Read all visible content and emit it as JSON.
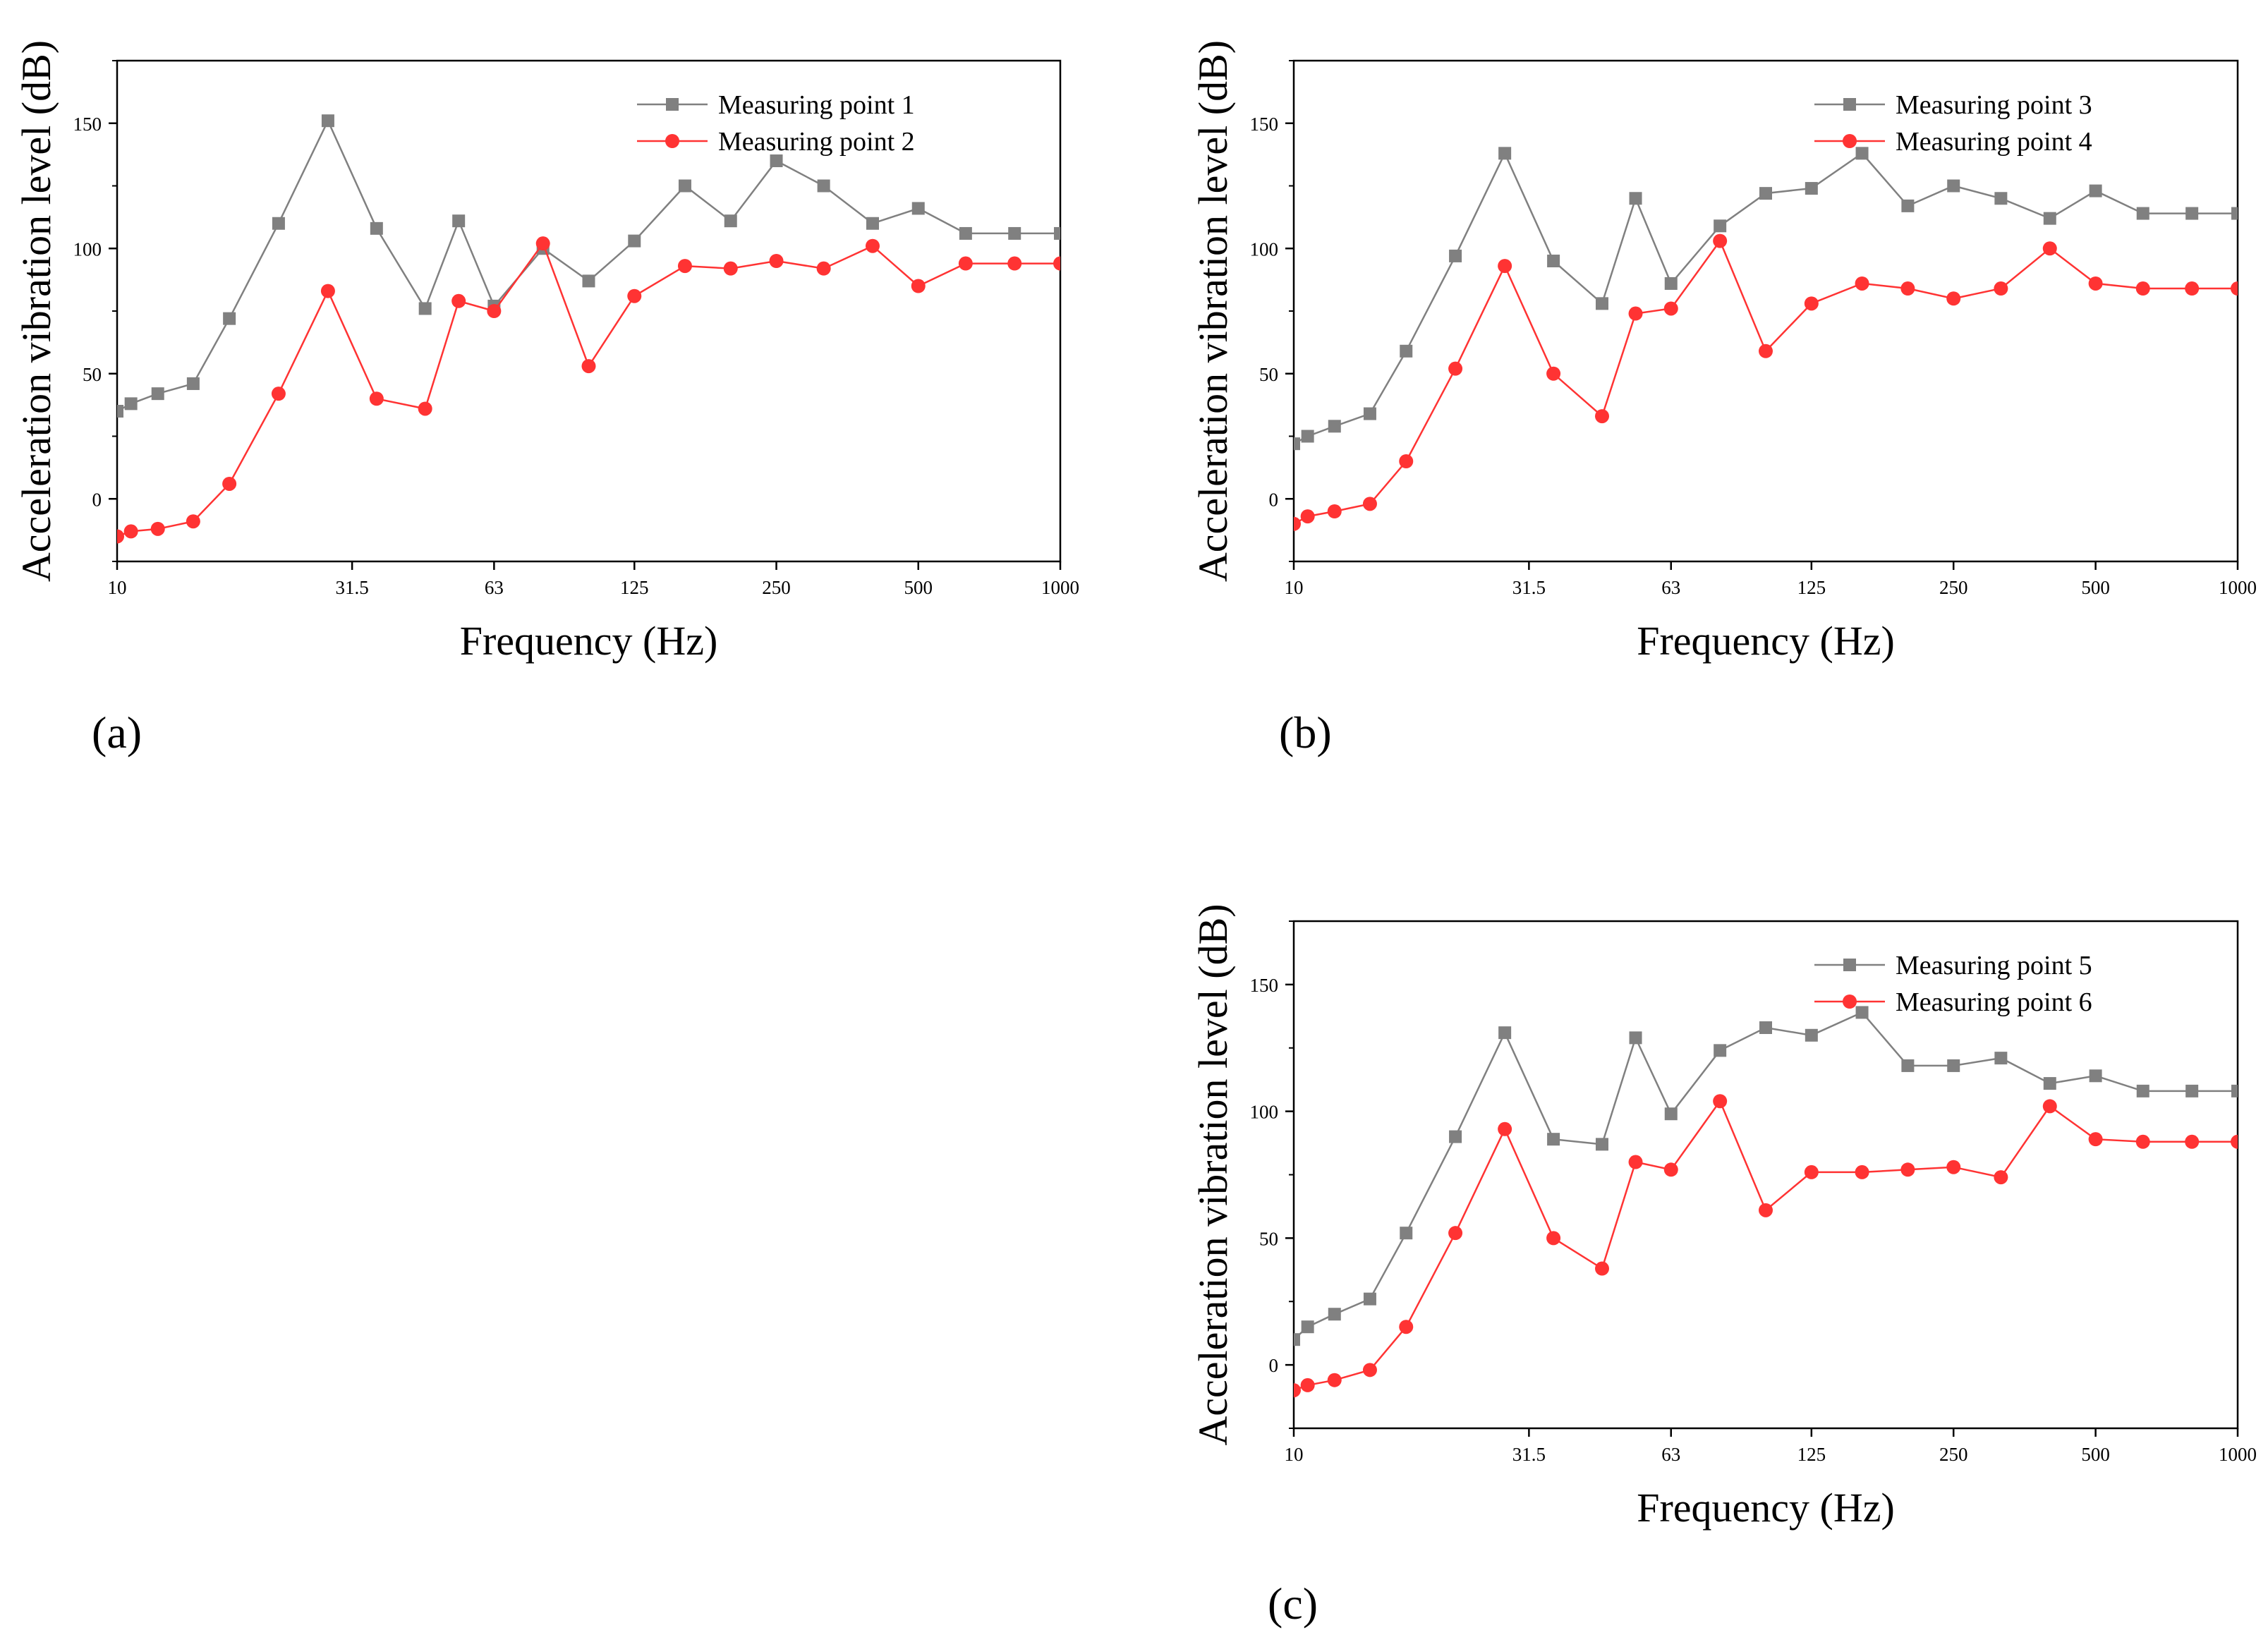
{
  "figure": {
    "panel_labels": [
      "(a)",
      "(b)",
      "(c)"
    ]
  },
  "chart_data": [
    {
      "type": "line",
      "panel": "(a)",
      "xlabel": "Frequency (Hz)",
      "ylabel": "Acceleration vibration level (dB)",
      "x_scale": "log",
      "xlim": [
        10,
        1000
      ],
      "ylim": [
        -25,
        175
      ],
      "xticks": [
        "10",
        "31.5",
        "63",
        "125",
        "250",
        "500",
        "1000"
      ],
      "yticks": [
        "0",
        "50",
        "100",
        "150"
      ],
      "legend_position": "top-right",
      "x": [
        10,
        11,
        12.5,
        15,
        18,
        22,
        25,
        31.5,
        40,
        50,
        63,
        80,
        100,
        125,
        160,
        200,
        250,
        315,
        400,
        500,
        630,
        800,
        1000
      ],
      "x_plot": [
        10,
        10.7,
        12.2,
        14.5,
        17.3,
        22,
        28,
        35.5,
        45,
        53,
        63,
        80,
        100,
        125,
        160,
        200,
        250,
        315,
        400,
        500,
        630,
        800,
        1000
      ],
      "series": [
        {
          "name": "Measuring point 1",
          "color": "#808080",
          "marker": "square",
          "values": [
            35,
            38,
            42,
            46,
            72,
            110,
            151,
            108,
            76,
            111,
            77,
            100,
            87,
            103,
            125,
            111,
            135,
            125,
            110,
            116,
            106,
            106,
            106
          ]
        },
        {
          "name": "Measuring point 2",
          "color": "#ff3333",
          "marker": "circle",
          "values": [
            -15,
            -13,
            -12,
            -9,
            6,
            42,
            83,
            40,
            36,
            79,
            75,
            102,
            53,
            81,
            93,
            92,
            95,
            92,
            101,
            85,
            94,
            94,
            94
          ]
        }
      ]
    },
    {
      "type": "line",
      "panel": "(b)",
      "xlabel": "Frequency (Hz)",
      "ylabel": "Acceleration vibration level (dB)",
      "x_scale": "log",
      "xlim": [
        10,
        1000
      ],
      "ylim": [
        -25,
        175
      ],
      "xticks": [
        "10",
        "31.5",
        "63",
        "125",
        "250",
        "500",
        "1000"
      ],
      "yticks": [
        "0",
        "50",
        "100",
        "150"
      ],
      "legend_position": "top-right",
      "series": [
        {
          "name": "Measuring point 3",
          "color": "#808080",
          "marker": "square",
          "values": [
            22,
            25,
            29,
            34,
            59,
            97,
            138,
            95,
            78,
            120,
            86,
            109,
            122,
            124,
            138,
            117,
            125,
            120,
            112,
            123,
            114,
            114,
            114
          ]
        },
        {
          "name": "Measuring point 4",
          "color": "#ff3333",
          "marker": "circle",
          "values": [
            -10,
            -7,
            -5,
            -2,
            15,
            52,
            93,
            50,
            33,
            74,
            76,
            103,
            59,
            78,
            86,
            84,
            80,
            84,
            100,
            86,
            84,
            84,
            84
          ]
        }
      ]
    },
    {
      "type": "line",
      "panel": "(c)",
      "xlabel": "Frequency (Hz)",
      "ylabel": "Acceleration vibration level (dB)",
      "x_scale": "log",
      "xlim": [
        10,
        1000
      ],
      "ylim": [
        -25,
        175
      ],
      "xticks": [
        "10",
        "31.5",
        "63",
        "125",
        "250",
        "500",
        "1000"
      ],
      "yticks": [
        "0",
        "50",
        "100",
        "150"
      ],
      "legend_position": "top-right",
      "series": [
        {
          "name": "Measuring point 5",
          "color": "#808080",
          "marker": "square",
          "values": [
            10,
            15,
            20,
            26,
            52,
            90,
            131,
            89,
            87,
            129,
            99,
            124,
            133,
            130,
            139,
            118,
            118,
            121,
            111,
            114,
            108,
            108,
            108
          ]
        },
        {
          "name": "Measuring point 6",
          "color": "#ff3333",
          "marker": "circle",
          "values": [
            -10,
            -8,
            -6,
            -2,
            15,
            52,
            93,
            50,
            38,
            80,
            77,
            104,
            61,
            76,
            76,
            77,
            78,
            74,
            102,
            89,
            88,
            88,
            88
          ]
        }
      ]
    }
  ]
}
